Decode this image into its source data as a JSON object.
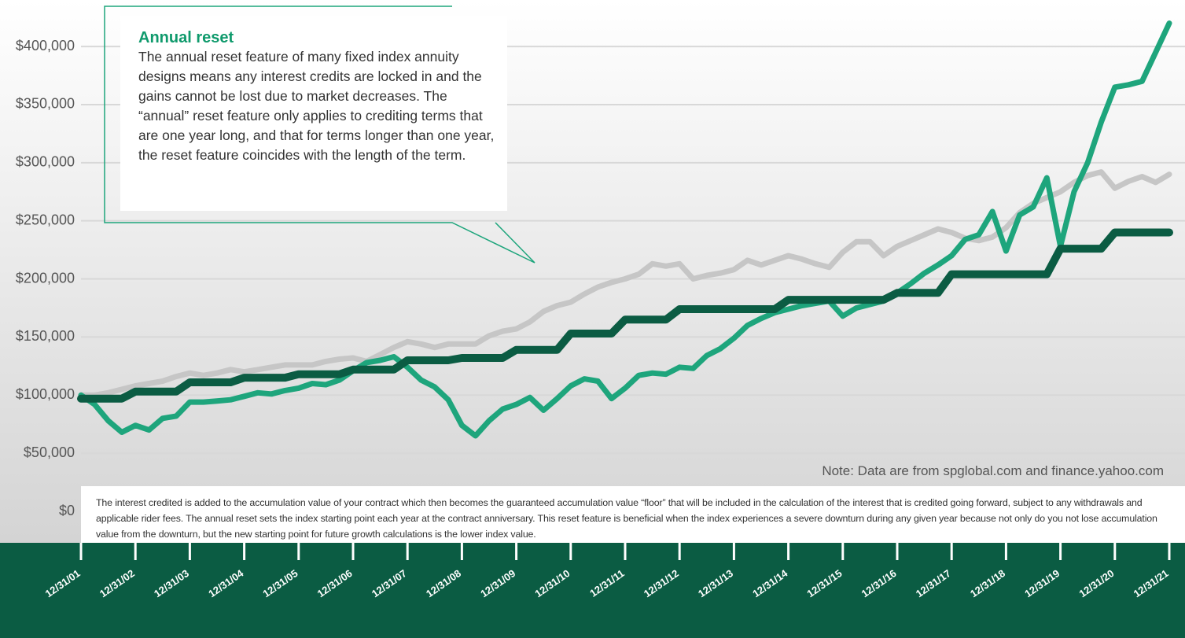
{
  "chart_data": {
    "type": "line",
    "categories": [
      "12/31/01",
      null,
      null,
      null,
      "12/31/02",
      null,
      null,
      null,
      "12/31/03",
      null,
      null,
      null,
      "12/31/04",
      null,
      null,
      null,
      "12/31/05",
      null,
      null,
      null,
      "12/31/06",
      null,
      null,
      null,
      "12/31/07",
      null,
      null,
      null,
      "12/31/08",
      null,
      null,
      null,
      "12/31/09",
      null,
      null,
      null,
      "12/31/10",
      null,
      null,
      null,
      "12/31/11",
      null,
      null,
      null,
      "12/31/12",
      null,
      null,
      null,
      "12/31/13",
      null,
      null,
      null,
      "12/31/14",
      null,
      null,
      null,
      "12/31/15",
      null,
      null,
      null,
      "12/31/16",
      null,
      null,
      null,
      "12/31/17",
      null,
      null,
      null,
      "12/31/18",
      null,
      null,
      null,
      "12/31/19",
      null,
      null,
      null,
      "12/31/20",
      null,
      null,
      null,
      "12/31/21"
    ],
    "series": [
      {
        "color": "#c6c6c6",
        "values": [
          100000,
          100000,
          102000,
          105000,
          108000,
          110000,
          112000,
          116000,
          119000,
          117000,
          119000,
          122000,
          120000,
          122000,
          124000,
          126000,
          126000,
          126000,
          129000,
          131000,
          132000,
          129000,
          135000,
          141000,
          146000,
          144000,
          141000,
          144000,
          144000,
          144000,
          151000,
          155000,
          157000,
          163000,
          172000,
          177000,
          180000,
          187000,
          193000,
          197000,
          200000,
          204000,
          213000,
          211000,
          213000,
          200000,
          203000,
          205000,
          208000,
          216000,
          212000,
          216000,
          220000,
          217000,
          213000,
          210000,
          223000,
          232000,
          232000,
          220000,
          228000,
          233000,
          238000,
          243000,
          240000,
          235000,
          233000,
          236000,
          244000,
          257000,
          265000,
          270000,
          275000,
          283000,
          289000,
          292000,
          278000,
          284000,
          288000,
          283000,
          290000
        ]
      },
      {
        "color": "#1ea57c",
        "values": [
          100000,
          92000,
          78000,
          68000,
          74000,
          70000,
          80000,
          82000,
          94000,
          94000,
          95000,
          96000,
          99000,
          102000,
          101000,
          104000,
          106000,
          110000,
          109000,
          113000,
          121000,
          128000,
          130000,
          133000,
          124000,
          113000,
          107000,
          96000,
          74000,
          65000,
          78000,
          88000,
          92000,
          98000,
          87000,
          97000,
          108000,
          114000,
          112000,
          97000,
          106000,
          117000,
          119000,
          118000,
          124000,
          123000,
          134000,
          140000,
          149000,
          160000,
          166000,
          171000,
          174000,
          177000,
          179000,
          181000,
          168000,
          175000,
          178000,
          181000,
          188000,
          196000,
          205000,
          212000,
          220000,
          234000,
          238000,
          258000,
          224000,
          255000,
          262000,
          287000,
          228000,
          275000,
          300000,
          335000,
          365000,
          367000,
          370000,
          395000,
          420000
        ]
      },
      {
        "color": "#0b5c43",
        "values": [
          97000,
          97000,
          97000,
          97000,
          103000,
          103000,
          103000,
          103000,
          111000,
          111000,
          111000,
          111000,
          115000,
          115000,
          115000,
          115000,
          118000,
          118000,
          118000,
          118000,
          122000,
          122000,
          122000,
          122000,
          130000,
          130000,
          130000,
          130000,
          132000,
          132000,
          132000,
          132000,
          139000,
          139000,
          139000,
          139000,
          153000,
          153000,
          153000,
          153000,
          165000,
          165000,
          165000,
          165000,
          174000,
          174000,
          174000,
          174000,
          174000,
          174000,
          174000,
          174000,
          182000,
          182000,
          182000,
          182000,
          182000,
          182000,
          182000,
          182000,
          188000,
          188000,
          188000,
          188000,
          204000,
          204000,
          204000,
          204000,
          204000,
          204000,
          204000,
          204000,
          226000,
          226000,
          226000,
          226000,
          240000,
          240000,
          240000,
          240000,
          240000
        ]
      }
    ],
    "ylim": [
      0,
      440000
    ],
    "yticks": [
      {
        "value": 0,
        "label": "$0"
      },
      {
        "value": 50000,
        "label": "$50,000"
      },
      {
        "value": 100000,
        "label": "$100,000"
      },
      {
        "value": 150000,
        "label": "$150,000"
      },
      {
        "value": 200000,
        "label": "$200,000"
      },
      {
        "value": 250000,
        "label": "$250,000"
      },
      {
        "value": 300000,
        "label": "$300,000"
      },
      {
        "value": 350000,
        "label": "$350,000"
      },
      {
        "value": 400000,
        "label": "$400,000"
      }
    ],
    "grid": true,
    "callout_title": "Annual reset",
    "callout_text": "The annual reset feature of many fixed index annuity designs means any interest credits are locked in and the gains cannot be lost due to market decreases. The “annual” reset feature only applies to crediting terms that are one year long, and that for terms longer than one year, the reset feature coincides with the length of the term.",
    "note": "Note: Data are from spglobal.com and finance.yahoo.com",
    "footnote": "The interest credited is added to the accumulation value of your contract which then becomes the guaranteed accumulation value “floor” that will be included in the calculation of the interest that is credited going forward, subject to any withdrawals and applicable rider fees. The annual reset sets the index starting point each year at the contract anniversary. This reset feature is beneficial when the index experiences a severe downturn during any given year because not only do you not lose accumulation value from the downturn, but the new starting point for future growth calculations is the lower index value."
  }
}
